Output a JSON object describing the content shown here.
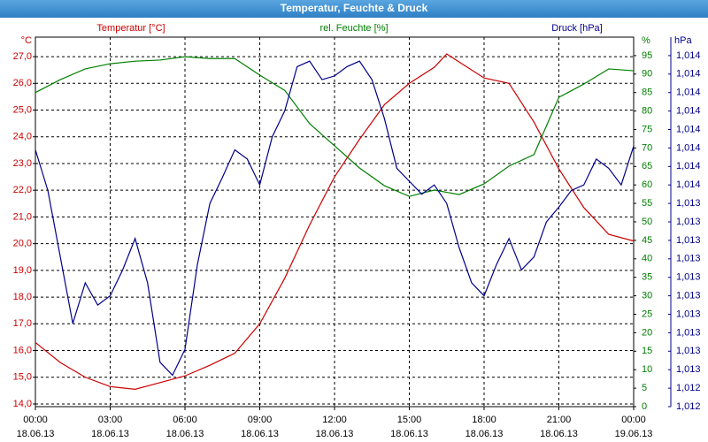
{
  "chart_data": {
    "type": "line",
    "title": "Temperatur, Feuchte & Druck",
    "y_label": "Temperatur [°C]",
    "y_unit": "°C",
    "y2_label": "rel. Feuchte [%]",
    "y2_unit": "%",
    "y3_label": "Druck [hPa]",
    "y3_unit": "hPa",
    "xlim": [
      0,
      24
    ],
    "xticks": [
      {
        "value": 0,
        "label": "00:00"
      },
      {
        "value": 3,
        "label": "03:00"
      },
      {
        "value": 6,
        "label": "06:00"
      },
      {
        "value": 9,
        "label": "09:00"
      },
      {
        "value": 12,
        "label": "12:00"
      },
      {
        "value": 15,
        "label": "15:00"
      },
      {
        "value": 18,
        "label": "18:00"
      },
      {
        "value": 21,
        "label": "21:00"
      },
      {
        "value": 24,
        "label": "00:00"
      }
    ],
    "xtick_dates": [
      "18.06.13",
      "18.06.13",
      "18.06.13",
      "18.06.13",
      "18.06.13",
      "18.06.13",
      "18.06.13",
      "18.06.13",
      "19.06.13"
    ],
    "ylim": [
      13.9,
      27.73
    ],
    "yticks": [
      {
        "value": 14,
        "label": "14,0"
      },
      {
        "value": 15,
        "label": "15,0"
      },
      {
        "value": 16,
        "label": "16,0"
      },
      {
        "value": 17,
        "label": "17,0"
      },
      {
        "value": 18,
        "label": "18,0"
      },
      {
        "value": 19,
        "label": "19,0"
      },
      {
        "value": 20,
        "label": "20,0"
      },
      {
        "value": 21,
        "label": "21,0"
      },
      {
        "value": 22,
        "label": "22,0"
      },
      {
        "value": 23,
        "label": "23,0"
      },
      {
        "value": 24,
        "label": "24,0"
      },
      {
        "value": 25,
        "label": "25,0"
      },
      {
        "value": 26,
        "label": "26,0"
      },
      {
        "value": 27,
        "label": "27,0"
      }
    ],
    "y2lim": [
      0,
      100
    ],
    "y2ticks": [
      0,
      5,
      10,
      15,
      20,
      25,
      30,
      35,
      40,
      45,
      50,
      55,
      60,
      65,
      70,
      75,
      80,
      85,
      90,
      95
    ],
    "y3lim": [
      1012.35,
      1014.35
    ],
    "y3ticks": [
      {
        "value": 1012.35,
        "label": "1,012"
      },
      {
        "value": 1012.45,
        "label": "1,012"
      },
      {
        "value": 1012.55,
        "label": "1,013"
      },
      {
        "value": 1012.65,
        "label": "1,013"
      },
      {
        "value": 1012.75,
        "label": "1,013"
      },
      {
        "value": 1012.85,
        "label": "1,013"
      },
      {
        "value": 1012.95,
        "label": "1,013"
      },
      {
        "value": 1013.05,
        "label": "1,013"
      },
      {
        "value": 1013.15,
        "label": "1,013"
      },
      {
        "value": 1013.25,
        "label": "1,013"
      },
      {
        "value": 1013.35,
        "label": "1,013"
      },
      {
        "value": 1013.45,
        "label": "1,013"
      },
      {
        "value": 1013.55,
        "label": "1,014"
      },
      {
        "value": 1013.65,
        "label": "1,014"
      },
      {
        "value": 1013.75,
        "label": "1,014"
      },
      {
        "value": 1013.85,
        "label": "1,014"
      },
      {
        "value": 1013.95,
        "label": "1,014"
      },
      {
        "value": 1014.05,
        "label": "1,014"
      },
      {
        "value": 1014.15,
        "label": "1,014"
      },
      {
        "value": 1014.25,
        "label": "1,014"
      }
    ],
    "grid": true,
    "series": [
      {
        "name": "Temperatur",
        "color": "#cc0000",
        "axis": "y",
        "x": [
          0,
          1,
          2,
          3,
          4,
          5,
          6,
          7,
          8,
          9,
          10,
          11,
          12,
          13,
          14,
          15,
          16,
          16.5,
          17,
          18,
          19,
          20,
          21,
          22,
          23,
          24
        ],
        "values": [
          16.3,
          15.55,
          15.0,
          14.65,
          14.55,
          14.8,
          15.05,
          15.45,
          15.9,
          17.0,
          18.7,
          20.7,
          22.5,
          23.9,
          25.2,
          26.0,
          26.6,
          27.1,
          26.8,
          26.2,
          26.0,
          24.55,
          22.8,
          21.35,
          20.35,
          20.1
        ]
      },
      {
        "name": "rel. Feuchte",
        "color": "#008000",
        "axis": "y2",
        "x": [
          0,
          1,
          2,
          3,
          4,
          5,
          6,
          7,
          8,
          9,
          10,
          11,
          12,
          13,
          14,
          15,
          16,
          17,
          18,
          19,
          20,
          21,
          22,
          23,
          24
        ],
        "values": [
          85,
          88.5,
          91.4,
          92.8,
          93.5,
          93.8,
          94.7,
          94.2,
          94.2,
          89.7,
          85.6,
          76.6,
          70.6,
          64.6,
          59.8,
          56.9,
          58.6,
          57.4,
          60.3,
          65.1,
          68.2,
          83.7,
          87.3,
          91.4,
          90.9
        ]
      },
      {
        "name": "Druck",
        "color": "#00008b",
        "axis": "y3",
        "x": [
          0,
          0.5,
          1,
          1.5,
          2,
          2.5,
          3,
          3.5,
          4,
          4.5,
          5,
          5.5,
          6,
          6.5,
          7,
          7.5,
          8,
          8.5,
          9,
          9.5,
          10,
          10.5,
          11,
          11.5,
          12,
          12.5,
          13,
          13.5,
          14,
          14.5,
          15,
          15.5,
          16,
          16.5,
          17,
          17.5,
          18,
          18.5,
          19,
          19.5,
          20,
          20.5,
          21,
          21.5,
          22,
          22.5,
          23,
          23.5,
          24
        ],
        "values": [
          1013.74,
          1013.52,
          1013.16,
          1012.8,
          1013.02,
          1012.9,
          1012.95,
          1013.09,
          1013.26,
          1013.02,
          1012.59,
          1012.52,
          1012.66,
          1013.12,
          1013.45,
          1013.59,
          1013.74,
          1013.69,
          1013.55,
          1013.81,
          1013.95,
          1014.19,
          1014.22,
          1014.12,
          1014.14,
          1014.19,
          1014.22,
          1014.12,
          1013.91,
          1013.64,
          1013.57,
          1013.5,
          1013.55,
          1013.45,
          1013.21,
          1013.02,
          1012.95,
          1013.12,
          1013.26,
          1013.09,
          1013.16,
          1013.35,
          1013.43,
          1013.52,
          1013.55,
          1013.69,
          1013.64,
          1013.55,
          1013.76
        ]
      }
    ]
  }
}
